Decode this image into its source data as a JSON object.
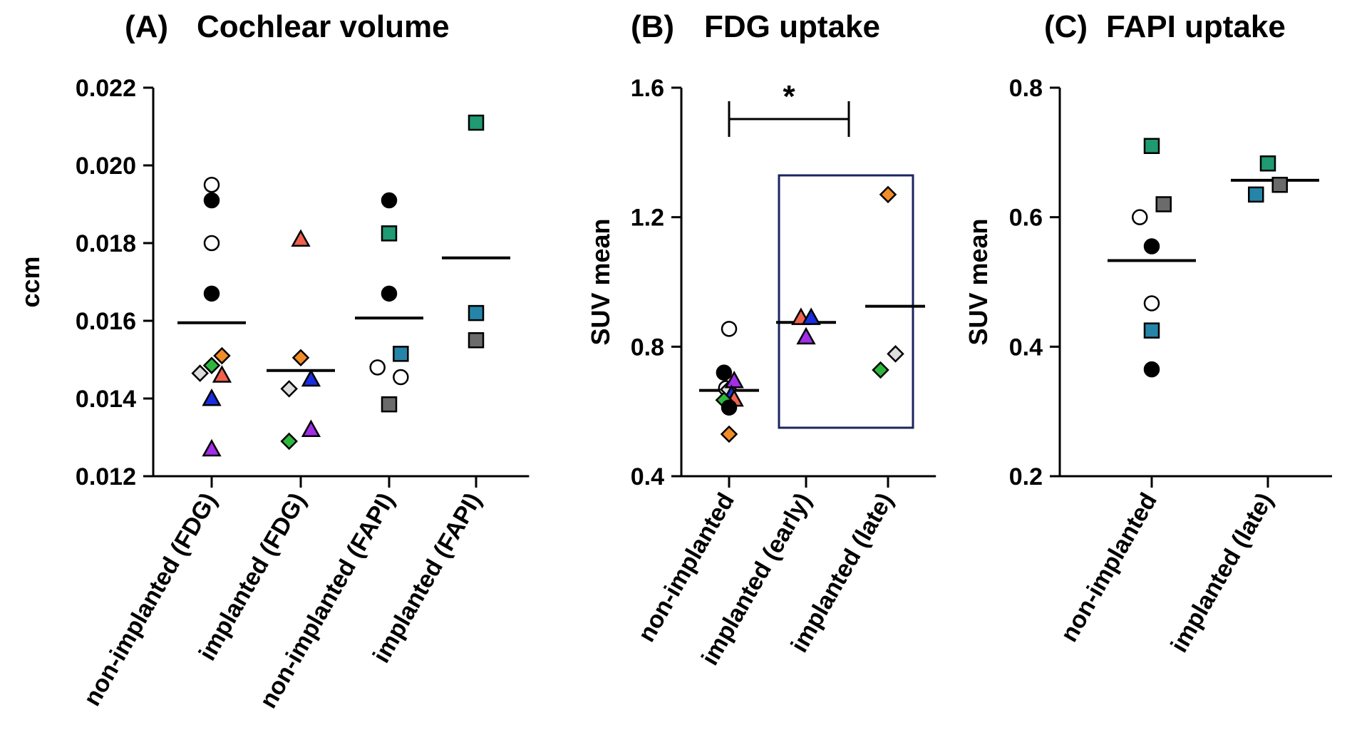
{
  "chart_data": [
    {
      "panel": "A",
      "type": "scatter",
      "title_prefix": "(A)",
      "title": "Cochlear volume",
      "ylabel": "ccm",
      "ylim": [
        0.012,
        0.022
      ],
      "yticks": [
        "0.012",
        "0.014",
        "0.016",
        "0.018",
        "0.020",
        "0.022"
      ],
      "categories": [
        "non-implanted (FDG)",
        "implanted (FDG)",
        "non-implanted (FAPI)",
        "implanted (FAPI)"
      ],
      "means": [
        0.01595,
        0.01472,
        0.01607,
        0.01762
      ],
      "points": [
        {
          "cat": 0,
          "off": 0.0,
          "y": 0.0195,
          "shape": "circle",
          "color": "#ffffff"
        },
        {
          "cat": 0,
          "off": 0.0,
          "y": 0.0191,
          "shape": "circle",
          "color": "#000000"
        },
        {
          "cat": 0,
          "off": 0.0,
          "y": 0.018,
          "shape": "circle",
          "color": "#ffffff"
        },
        {
          "cat": 0,
          "off": 0.0,
          "y": 0.0167,
          "shape": "circle",
          "color": "#000000"
        },
        {
          "cat": 0,
          "off": -0.34,
          "y": 0.01465,
          "shape": "diamond",
          "color": "#dddddd"
        },
        {
          "cat": 0,
          "off": 0.0,
          "y": 0.01485,
          "shape": "diamond",
          "color": "#2db83d"
        },
        {
          "cat": 0,
          "off": 0.3,
          "y": 0.0151,
          "shape": "diamond",
          "color": "#f28c28"
        },
        {
          "cat": 0,
          "off": 0.3,
          "y": 0.0146,
          "shape": "triangle",
          "color": "#f0614e"
        },
        {
          "cat": 0,
          "off": 0.0,
          "y": 0.014,
          "shape": "triangle",
          "color": "#1a2ee0"
        },
        {
          "cat": 0,
          "off": 0.0,
          "y": 0.0127,
          "shape": "triangle",
          "color": "#a22ee8"
        },
        {
          "cat": 1,
          "off": 0.0,
          "y": 0.0181,
          "shape": "triangle",
          "color": "#f0614e"
        },
        {
          "cat": 1,
          "off": 0.0,
          "y": 0.01505,
          "shape": "diamond",
          "color": "#f28c28"
        },
        {
          "cat": 1,
          "off": -0.34,
          "y": 0.01425,
          "shape": "diamond",
          "color": "#dddddd"
        },
        {
          "cat": 1,
          "off": 0.3,
          "y": 0.0145,
          "shape": "triangle",
          "color": "#1a2ee0"
        },
        {
          "cat": 1,
          "off": -0.34,
          "y": 0.0129,
          "shape": "diamond",
          "color": "#2db83d"
        },
        {
          "cat": 1,
          "off": 0.3,
          "y": 0.0132,
          "shape": "triangle",
          "color": "#a22ee8"
        },
        {
          "cat": 2,
          "off": 0.0,
          "y": 0.0191,
          "shape": "circle",
          "color": "#000000"
        },
        {
          "cat": 2,
          "off": 0.0,
          "y": 0.01825,
          "shape": "square",
          "color": "#1f9a72"
        },
        {
          "cat": 2,
          "off": 0.0,
          "y": 0.0167,
          "shape": "circle",
          "color": "#000000"
        },
        {
          "cat": 2,
          "off": -0.34,
          "y": 0.0148,
          "shape": "circle",
          "color": "#ffffff"
        },
        {
          "cat": 2,
          "off": 0.34,
          "y": 0.01515,
          "shape": "square",
          "color": "#2585a8"
        },
        {
          "cat": 2,
          "off": 0.34,
          "y": 0.01455,
          "shape": "circle",
          "color": "#ffffff"
        },
        {
          "cat": 2,
          "off": 0.0,
          "y": 0.01385,
          "shape": "square",
          "color": "#6b6b6b"
        },
        {
          "cat": 3,
          "off": 0.0,
          "y": 0.0211,
          "shape": "square",
          "color": "#1f9a72"
        },
        {
          "cat": 3,
          "off": 0.0,
          "y": 0.0162,
          "shape": "square",
          "color": "#2585a8"
        },
        {
          "cat": 3,
          "off": 0.0,
          "y": 0.0155,
          "shape": "square",
          "color": "#6b6b6b"
        }
      ]
    },
    {
      "panel": "B",
      "type": "scatter",
      "title_prefix": "(B)",
      "title": "FDG uptake",
      "ylabel": "SUV mean",
      "ylim": [
        0.4,
        1.6
      ],
      "yticks": [
        "0.4",
        "0.8",
        "1.2",
        "1.6"
      ],
      "categories": [
        "non-implanted",
        "implanted (early)",
        "implanted (late)"
      ],
      "means": [
        0.665,
        0.875,
        0.925
      ],
      "significance": {
        "from": 0,
        "to": 1,
        "label": "*"
      },
      "boxed_categories": [
        1,
        2
      ],
      "points": [
        {
          "cat": 0,
          "off": 0.0,
          "y": 0.855,
          "shape": "circle",
          "color": "#ffffff"
        },
        {
          "cat": 0,
          "off": -0.17,
          "y": 0.72,
          "shape": "circle",
          "color": "#000000"
        },
        {
          "cat": 0,
          "off": -0.1,
          "y": 0.672,
          "shape": "circle",
          "color": "#ffffff"
        },
        {
          "cat": 0,
          "off": -0.02,
          "y": 0.668,
          "shape": "diamond",
          "color": "#dddddd"
        },
        {
          "cat": 0,
          "off": 0.17,
          "y": 0.695,
          "shape": "triangle",
          "color": "#a22ee8"
        },
        {
          "cat": 0,
          "off": 0.08,
          "y": 0.652,
          "shape": "triangle",
          "color": "#1a2ee0"
        },
        {
          "cat": 0,
          "off": 0.17,
          "y": 0.638,
          "shape": "triangle",
          "color": "#f0614e"
        },
        {
          "cat": 0,
          "off": -0.17,
          "y": 0.635,
          "shape": "diamond",
          "color": "#2db83d"
        },
        {
          "cat": 0,
          "off": 0.0,
          "y": 0.612,
          "shape": "circle",
          "color": "#000000"
        },
        {
          "cat": 0,
          "off": 0.0,
          "y": 0.53,
          "shape": "diamond",
          "color": "#f28c28"
        },
        {
          "cat": 1,
          "off": -0.17,
          "y": 0.89,
          "shape": "triangle",
          "color": "#f0614e"
        },
        {
          "cat": 1,
          "off": 0.17,
          "y": 0.89,
          "shape": "triangle",
          "color": "#1a2ee0"
        },
        {
          "cat": 1,
          "off": 0.0,
          "y": 0.83,
          "shape": "triangle",
          "color": "#a22ee8"
        },
        {
          "cat": 2,
          "off": 0.0,
          "y": 1.27,
          "shape": "diamond",
          "color": "#f28c28"
        },
        {
          "cat": 2,
          "off": 0.25,
          "y": 0.778,
          "shape": "diamond",
          "color": "#dddddd"
        },
        {
          "cat": 2,
          "off": -0.25,
          "y": 0.728,
          "shape": "diamond",
          "color": "#2db83d"
        }
      ]
    },
    {
      "panel": "C",
      "type": "scatter",
      "title_prefix": "(C)",
      "title": "FAPI uptake",
      "ylabel": "SUV mean",
      "ylim": [
        0.2,
        0.8
      ],
      "yticks": [
        "0.2",
        "0.4",
        "0.6",
        "0.8"
      ],
      "categories": [
        "non-implanted",
        "implanted (late)"
      ],
      "means": [
        0.533,
        0.657
      ],
      "points": [
        {
          "cat": 0,
          "off": 0.0,
          "y": 0.71,
          "shape": "square",
          "color": "#1f9a72"
        },
        {
          "cat": 0,
          "off": 0.27,
          "y": 0.62,
          "shape": "square",
          "color": "#6b6b6b"
        },
        {
          "cat": 0,
          "off": -0.27,
          "y": 0.6,
          "shape": "circle",
          "color": "#ffffff"
        },
        {
          "cat": 0,
          "off": 0.0,
          "y": 0.555,
          "shape": "circle",
          "color": "#000000"
        },
        {
          "cat": 0,
          "off": 0.0,
          "y": 0.467,
          "shape": "circle",
          "color": "#ffffff"
        },
        {
          "cat": 0,
          "off": 0.0,
          "y": 0.425,
          "shape": "square",
          "color": "#2585a8"
        },
        {
          "cat": 0,
          "off": 0.0,
          "y": 0.365,
          "shape": "circle",
          "color": "#000000"
        },
        {
          "cat": 1,
          "off": 0.0,
          "y": 0.683,
          "shape": "square",
          "color": "#1f9a72"
        },
        {
          "cat": 1,
          "off": 0.27,
          "y": 0.65,
          "shape": "square",
          "color": "#6b6b6b"
        },
        {
          "cat": 1,
          "off": -0.27,
          "y": 0.635,
          "shape": "square",
          "color": "#2585a8"
        }
      ]
    }
  ]
}
